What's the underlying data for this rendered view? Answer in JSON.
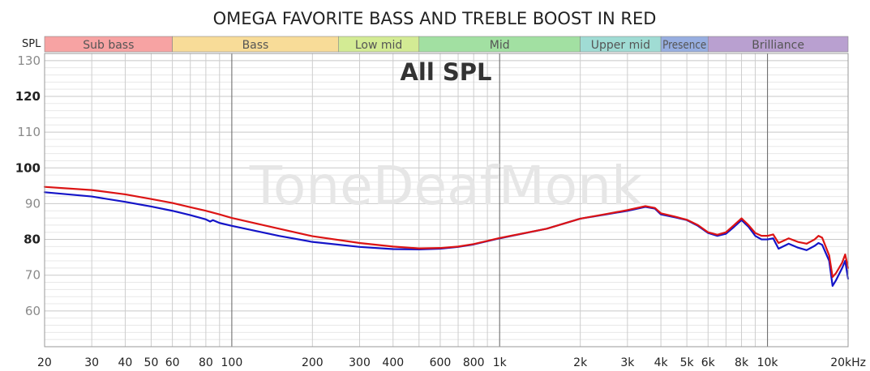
{
  "chart_data": {
    "type": "line",
    "title": "OMEGA FAVORITE BASS AND TREBLE BOOST IN RED",
    "overlay_text": "All SPL",
    "watermark": "ToneDeafMonk",
    "ylabel": "SPL",
    "xscale": "log",
    "xlim": [
      20,
      20000
    ],
    "ylim": [
      50,
      132
    ],
    "grid": true,
    "yticks": [
      {
        "value": 60,
        "label": "60",
        "major": false
      },
      {
        "value": 70,
        "label": "70",
        "major": false
      },
      {
        "value": 80,
        "label": "80",
        "major": true
      },
      {
        "value": 90,
        "label": "90",
        "major": false
      },
      {
        "value": 100,
        "label": "100",
        "major": true
      },
      {
        "value": 110,
        "label": "110",
        "major": false
      },
      {
        "value": 120,
        "label": "120",
        "major": true
      },
      {
        "value": 130,
        "label": "130",
        "major": false
      }
    ],
    "xticks": [
      {
        "value": 20,
        "label": "20"
      },
      {
        "value": 30,
        "label": "30"
      },
      {
        "value": 40,
        "label": "40"
      },
      {
        "value": 50,
        "label": "50"
      },
      {
        "value": 60,
        "label": "60"
      },
      {
        "value": 80,
        "label": "80"
      },
      {
        "value": 100,
        "label": "100"
      },
      {
        "value": 200,
        "label": "200"
      },
      {
        "value": 300,
        "label": "300"
      },
      {
        "value": 400,
        "label": "400"
      },
      {
        "value": 600,
        "label": "600"
      },
      {
        "value": 800,
        "label": "800"
      },
      {
        "value": 1000,
        "label": "1k"
      },
      {
        "value": 2000,
        "label": "2k"
      },
      {
        "value": 3000,
        "label": "3k"
      },
      {
        "value": 4000,
        "label": "4k"
      },
      {
        "value": 5000,
        "label": "5k"
      },
      {
        "value": 6000,
        "label": "6k"
      },
      {
        "value": 8000,
        "label": "8k"
      },
      {
        "value": 10000,
        "label": "10k"
      },
      {
        "value": 20000,
        "label": "20kHz"
      }
    ],
    "bands": [
      {
        "label": "Sub bass",
        "from": 20,
        "to": 60,
        "color": "#f7a3a3"
      },
      {
        "label": "Bass",
        "from": 60,
        "to": 250,
        "color": "#f8dc98"
      },
      {
        "label": "Low mid",
        "from": 250,
        "to": 500,
        "color": "#d3eb94"
      },
      {
        "label": "Mid",
        "from": 500,
        "to": 2000,
        "color": "#a2e0a2"
      },
      {
        "label": "Upper mid",
        "from": 2000,
        "to": 4000,
        "color": "#a0dcd4"
      },
      {
        "label": "Presence",
        "from": 4000,
        "to": 6000,
        "color": "#97aee0"
      },
      {
        "label": "Brilliance",
        "from": 6000,
        "to": 20000,
        "color": "#b9a0d0"
      }
    ],
    "series": [
      {
        "color": "#1414c8",
        "points": [
          [
            20,
            93.2
          ],
          [
            30,
            92.0
          ],
          [
            40,
            90.5
          ],
          [
            50,
            89.2
          ],
          [
            60,
            88.0
          ],
          [
            70,
            86.8
          ],
          [
            80,
            85.6
          ],
          [
            83,
            85.0
          ],
          [
            85,
            85.4
          ],
          [
            90,
            84.6
          ],
          [
            100,
            83.8
          ],
          [
            150,
            81.0
          ],
          [
            200,
            79.3
          ],
          [
            300,
            77.9
          ],
          [
            400,
            77.3
          ],
          [
            500,
            77.2
          ],
          [
            600,
            77.4
          ],
          [
            700,
            77.9
          ],
          [
            800,
            78.6
          ],
          [
            1000,
            80.3
          ],
          [
            1500,
            83.0
          ],
          [
            2000,
            85.8
          ],
          [
            2500,
            87.0
          ],
          [
            3000,
            88.0
          ],
          [
            3500,
            89.1
          ],
          [
            3800,
            88.6
          ],
          [
            4000,
            87.0
          ],
          [
            4500,
            86.2
          ],
          [
            5000,
            85.4
          ],
          [
            5500,
            83.8
          ],
          [
            6000,
            81.8
          ],
          [
            6500,
            81.0
          ],
          [
            7000,
            81.6
          ],
          [
            7500,
            83.5
          ],
          [
            8000,
            85.4
          ],
          [
            8500,
            83.5
          ],
          [
            9000,
            81.0
          ],
          [
            9500,
            80.0
          ],
          [
            10000,
            80.0
          ],
          [
            10500,
            80.3
          ],
          [
            11000,
            77.4
          ],
          [
            12000,
            78.8
          ],
          [
            13000,
            77.7
          ],
          [
            14000,
            77.0
          ],
          [
            15000,
            78.2
          ],
          [
            15500,
            79.0
          ],
          [
            16000,
            78.5
          ],
          [
            17000,
            74.0
          ],
          [
            17500,
            67.0
          ],
          [
            18000,
            68.5
          ],
          [
            19000,
            72.0
          ],
          [
            19500,
            74.0
          ],
          [
            20000,
            69.0
          ]
        ]
      },
      {
        "color": "#dc1414",
        "points": [
          [
            20,
            94.7
          ],
          [
            30,
            93.8
          ],
          [
            40,
            92.6
          ],
          [
            50,
            91.3
          ],
          [
            60,
            90.2
          ],
          [
            70,
            89.0
          ],
          [
            80,
            88.0
          ],
          [
            90,
            87.0
          ],
          [
            100,
            86.0
          ],
          [
            150,
            83.0
          ],
          [
            200,
            80.9
          ],
          [
            300,
            79.0
          ],
          [
            400,
            78.0
          ],
          [
            500,
            77.5
          ],
          [
            600,
            77.6
          ],
          [
            700,
            78.0
          ],
          [
            800,
            78.7
          ],
          [
            1000,
            80.4
          ],
          [
            1500,
            83.0
          ],
          [
            2000,
            85.8
          ],
          [
            2500,
            87.1
          ],
          [
            3000,
            88.2
          ],
          [
            3500,
            89.3
          ],
          [
            3800,
            88.8
          ],
          [
            4000,
            87.3
          ],
          [
            4500,
            86.4
          ],
          [
            5000,
            85.5
          ],
          [
            5500,
            84.0
          ],
          [
            6000,
            82.0
          ],
          [
            6500,
            81.3
          ],
          [
            7000,
            82.0
          ],
          [
            7500,
            84.0
          ],
          [
            8000,
            85.9
          ],
          [
            8500,
            84.0
          ],
          [
            9000,
            81.8
          ],
          [
            9500,
            81.0
          ],
          [
            10000,
            81.0
          ],
          [
            10500,
            81.4
          ],
          [
            11000,
            79.0
          ],
          [
            12000,
            80.3
          ],
          [
            13000,
            79.3
          ],
          [
            14000,
            78.8
          ],
          [
            15000,
            80.0
          ],
          [
            15500,
            81.0
          ],
          [
            16000,
            80.5
          ],
          [
            17000,
            75.5
          ],
          [
            17500,
            69.5
          ],
          [
            18000,
            70.5
          ],
          [
            19000,
            73.5
          ],
          [
            19500,
            75.8
          ],
          [
            20000,
            72.0
          ]
        ]
      }
    ]
  }
}
